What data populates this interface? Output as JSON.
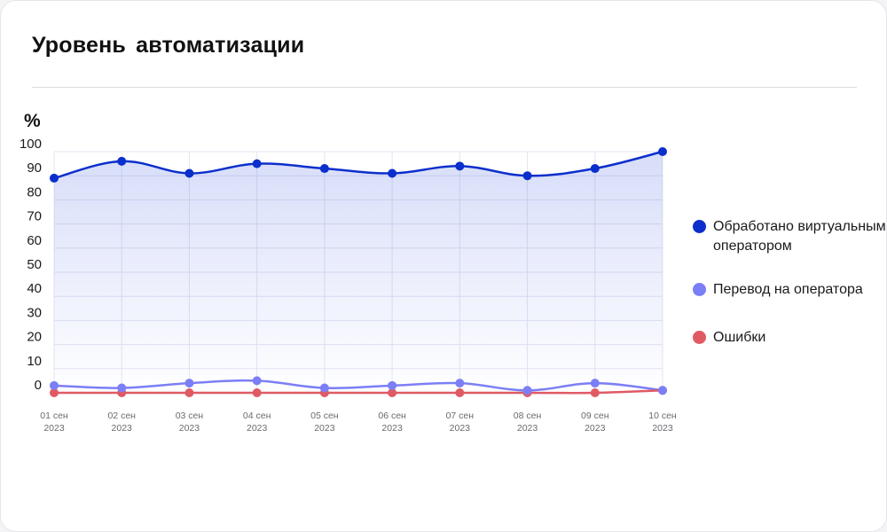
{
  "colors": {
    "processed": "#0b2fcc",
    "transfer": "#7b7ff5",
    "errors": "#e05a64",
    "grid": "#e3e5f2"
  },
  "chart_data": {
    "type": "line",
    "title": "Уровень  автоматизации",
    "ylabel": "%",
    "xlabel": "",
    "ylim": [
      0,
      100
    ],
    "y_ticks": [
      0,
      10,
      20,
      30,
      40,
      50,
      60,
      70,
      80,
      90,
      100
    ],
    "categories": [
      [
        "01 сен",
        "2023"
      ],
      [
        "02 сен",
        "2023"
      ],
      [
        "03 сен",
        "2023"
      ],
      [
        "04 сен",
        "2023"
      ],
      [
        "05 сен",
        "2023"
      ],
      [
        "06 сен",
        "2023"
      ],
      [
        "07 сен",
        "2023"
      ],
      [
        "08 сен",
        "2023"
      ],
      [
        "09 сен",
        "2023"
      ],
      [
        "10 сен",
        "2023"
      ]
    ],
    "grid": true,
    "legend_position": "right",
    "series": [
      {
        "key": "processed",
        "name": "Обработано виртуальным оператором",
        "values": [
          89,
          96,
          91,
          95,
          93,
          91,
          94,
          90,
          93,
          100
        ],
        "fill": true
      },
      {
        "key": "transfer",
        "name": "Перевод на оператора",
        "values": [
          3,
          2,
          4,
          5,
          2,
          3,
          4,
          1,
          4,
          1
        ]
      },
      {
        "key": "errors",
        "name": "Ошибки",
        "values": [
          0,
          0,
          0,
          0,
          0,
          0,
          0,
          0,
          0,
          1
        ]
      }
    ]
  }
}
